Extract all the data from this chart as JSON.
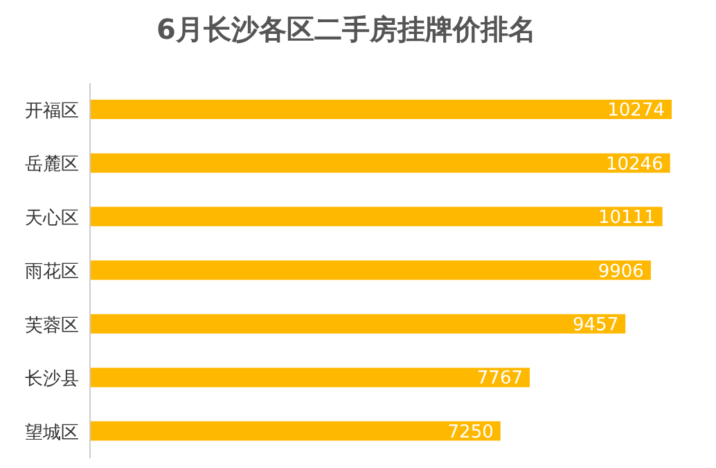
{
  "chart_data": {
    "type": "bar",
    "orientation": "horizontal",
    "title": "6月长沙各区二手房挂牌价排名",
    "categories": [
      "开福区",
      "岳麓区",
      "天心区",
      "雨花区",
      "芙蓉区",
      "长沙县",
      "望城区"
    ],
    "values": [
      10274,
      10246,
      10111,
      9906,
      9457,
      7767,
      7250
    ],
    "color": "#ffb800",
    "data_labels": true
  }
}
